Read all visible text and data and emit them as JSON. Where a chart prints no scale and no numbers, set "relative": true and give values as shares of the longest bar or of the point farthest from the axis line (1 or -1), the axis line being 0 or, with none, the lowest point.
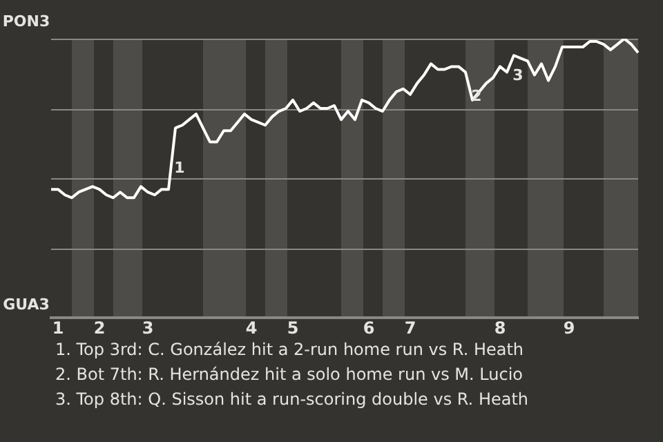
{
  "chart_data": {
    "type": "line",
    "relative": true,
    "categories": [
      null,
      "1",
      null,
      null,
      null,
      null,
      null,
      "2",
      null,
      null,
      null,
      null,
      null,
      null,
      "3",
      null,
      null,
      null,
      null,
      null,
      null,
      null,
      null,
      null,
      null,
      null,
      null,
      null,
      null,
      "4",
      null,
      null,
      null,
      null,
      null,
      "5",
      null,
      null,
      null,
      null,
      null,
      null,
      null,
      null,
      null,
      null,
      "6",
      null,
      null,
      null,
      null,
      null,
      "7",
      null,
      null,
      null,
      null,
      null,
      null,
      null,
      null,
      null,
      null,
      null,
      null,
      "8",
      null,
      null,
      null,
      null,
      null,
      null,
      null,
      null,
      null,
      "9",
      null,
      null,
      null,
      null,
      null,
      null,
      null,
      null,
      null,
      null
    ],
    "grid": "y",
    "marker": "none",
    "line_style": "solid",
    "series": [
      {
        "color": "#ffffff",
        "values": [
          0.46,
          0.46,
          0.44,
          0.43,
          0.45,
          0.46,
          0.47,
          0.46,
          0.44,
          0.43,
          0.45,
          0.43,
          0.43,
          0.47,
          0.45,
          0.44,
          0.46,
          0.46,
          0.68,
          0.69,
          0.71,
          0.73,
          0.68,
          0.63,
          0.63,
          0.67,
          0.67,
          0.7,
          0.73,
          0.71,
          0.7,
          0.69,
          0.72,
          0.74,
          0.75,
          0.78,
          0.74,
          0.75,
          0.77,
          0.75,
          0.75,
          0.76,
          0.71,
          0.74,
          0.71,
          0.78,
          0.77,
          0.75,
          0.74,
          0.78,
          0.81,
          0.82,
          0.8,
          0.84,
          0.87,
          0.91,
          0.89,
          0.89,
          0.9,
          0.9,
          0.88,
          0.78,
          0.81,
          0.84,
          0.86,
          0.9,
          0.88,
          0.94,
          0.93,
          0.92,
          0.87,
          0.91,
          0.85,
          0.9,
          0.97,
          0.97,
          0.97,
          0.97,
          0.99,
          0.99,
          0.98,
          0.96,
          0.98,
          1.0,
          0.98,
          0.95
        ]
      }
    ],
    "annotations": [
      "PON3",
      "GUA3",
      "1",
      "2",
      "3",
      "1. Top 3rd: C. González hit a 2-run home run vs R. Heath",
      "2. Bot 7th: R. Hernández hit a solo home run vs M. Lucio",
      "3. Top 8th: Q. Sisson hit a run-scoring double vs R. Heath"
    ]
  }
}
